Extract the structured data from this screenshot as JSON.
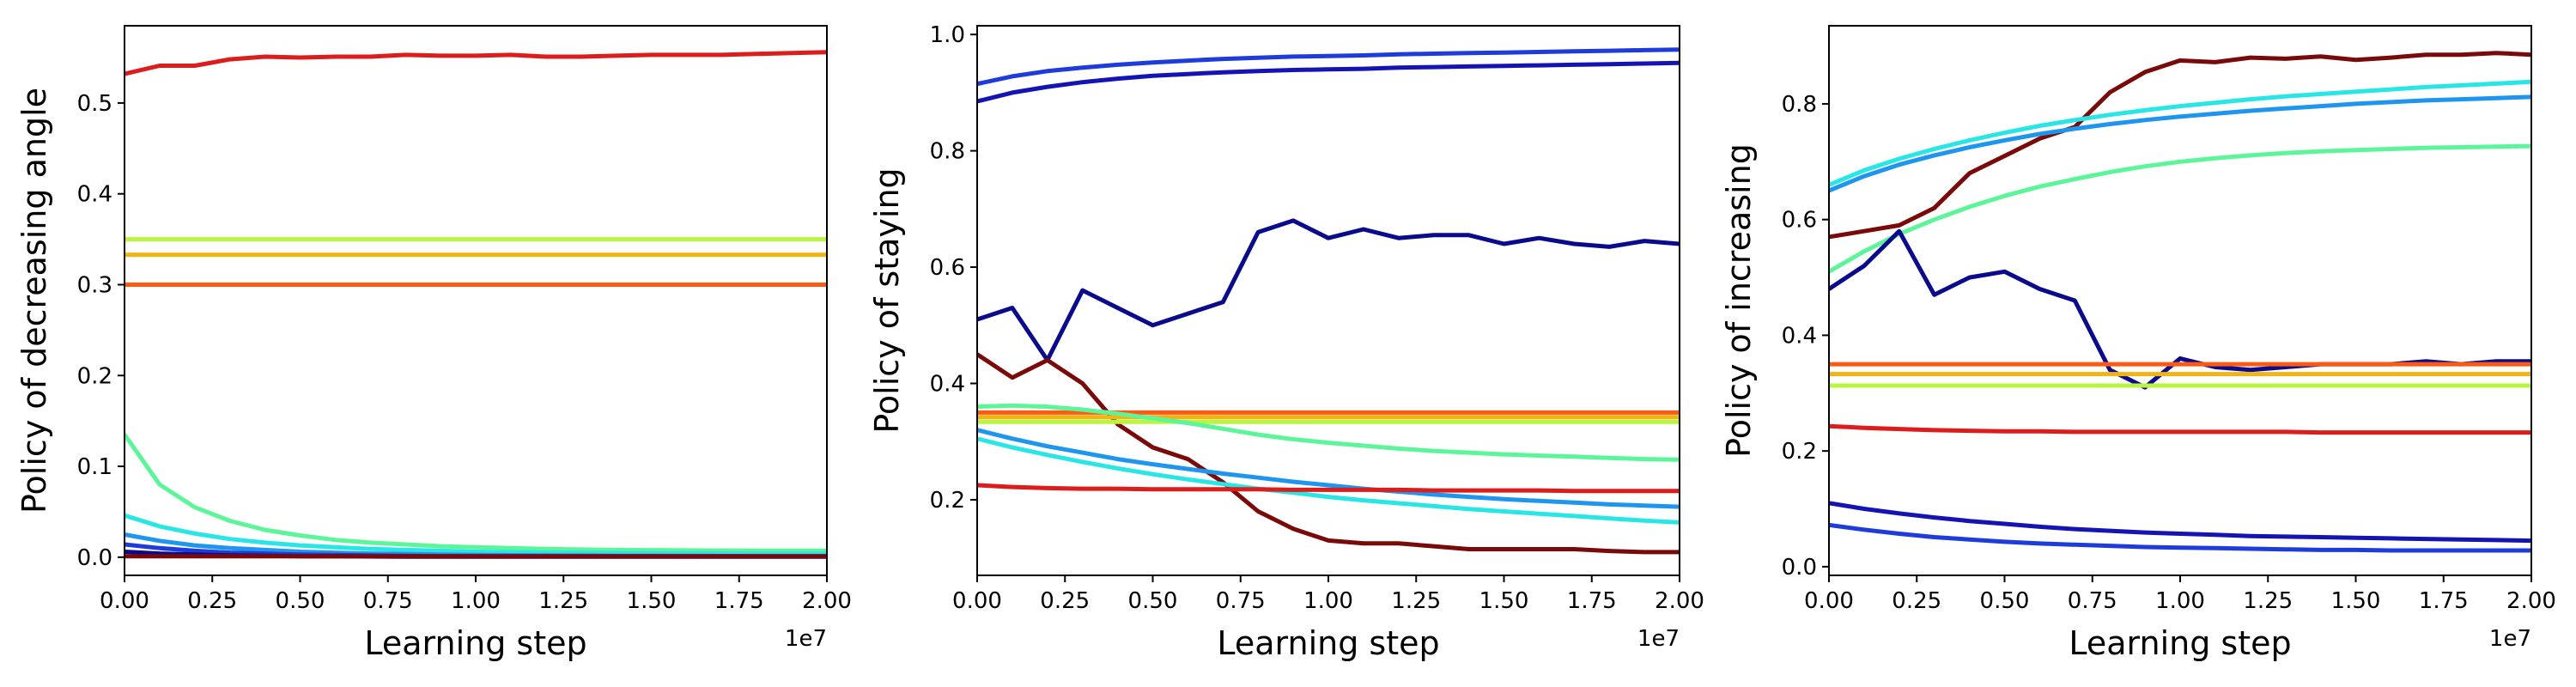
{
  "chart_data": [
    {
      "type": "line",
      "title": "",
      "xlabel": "Learning step",
      "ylabel": "Policy of decreasing angle",
      "x_offset_label": "1e7",
      "xlim": [
        0,
        2.0
      ],
      "ylim": [
        -0.02,
        0.585
      ],
      "xticks": [
        "0.00",
        "0.25",
        "0.50",
        "0.75",
        "1.00",
        "1.25",
        "1.50",
        "1.75",
        "2.00"
      ],
      "yticks": [
        "0.0",
        "0.1",
        "0.2",
        "0.3",
        "0.4",
        "0.5"
      ],
      "x": [
        0,
        0.1,
        0.2,
        0.3,
        0.4,
        0.5,
        0.6,
        0.7,
        0.8,
        0.9,
        1.0,
        1.1,
        1.2,
        1.3,
        1.4,
        1.5,
        1.6,
        1.7,
        1.8,
        1.9,
        2.0
      ],
      "series": [
        {
          "color": "#dd1c1c",
          "values": [
            0.532,
            0.541,
            0.541,
            0.548,
            0.551,
            0.55,
            0.551,
            0.551,
            0.553,
            0.552,
            0.552,
            0.553,
            0.551,
            0.551,
            0.552,
            0.553,
            0.553,
            0.553,
            0.554,
            0.555,
            0.556
          ]
        },
        {
          "color": "#b9f53e",
          "values": [
            0.35,
            0.35,
            0.35,
            0.35,
            0.35,
            0.35,
            0.35,
            0.35,
            0.35,
            0.35,
            0.35,
            0.35,
            0.35,
            0.35,
            0.35,
            0.35,
            0.35,
            0.35,
            0.35,
            0.35,
            0.35
          ]
        },
        {
          "color": "#f0b414",
          "values": [
            0.333,
            0.333,
            0.333,
            0.333,
            0.333,
            0.333,
            0.333,
            0.333,
            0.333,
            0.333,
            0.333,
            0.333,
            0.333,
            0.333,
            0.333,
            0.333,
            0.333,
            0.333,
            0.333,
            0.333,
            0.333
          ]
        },
        {
          "color": "#ff5a14",
          "values": [
            0.3,
            0.3,
            0.3,
            0.3,
            0.3,
            0.3,
            0.3,
            0.3,
            0.3,
            0.3,
            0.3,
            0.3,
            0.3,
            0.3,
            0.3,
            0.3,
            0.3,
            0.3,
            0.3,
            0.3,
            0.3
          ]
        },
        {
          "color": "#5cf59a",
          "values": [
            0.135,
            0.08,
            0.055,
            0.04,
            0.03,
            0.024,
            0.019,
            0.016,
            0.014,
            0.012,
            0.011,
            0.01,
            0.009,
            0.0085,
            0.008,
            0.0078,
            0.0075,
            0.0073,
            0.0071,
            0.007,
            0.007
          ]
        },
        {
          "color": "#28e6e6",
          "values": [
            0.046,
            0.034,
            0.026,
            0.02,
            0.016,
            0.013,
            0.011,
            0.009,
            0.008,
            0.007,
            0.006,
            0.0055,
            0.005,
            0.0047,
            0.0045,
            0.0043,
            0.0042,
            0.0041,
            0.004,
            0.004,
            0.004
          ]
        },
        {
          "color": "#1e96f0",
          "values": [
            0.025,
            0.018,
            0.013,
            0.01,
            0.008,
            0.006,
            0.005,
            0.004,
            0.0035,
            0.003,
            0.0025,
            0.0022,
            0.002,
            0.0018,
            0.0016,
            0.0015,
            0.0014,
            0.0013,
            0.0012,
            0.0012,
            0.0012
          ]
        },
        {
          "color": "#1e3cdc",
          "values": [
            0.014,
            0.01,
            0.007,
            0.005,
            0.004,
            0.003,
            0.0025,
            0.002,
            0.0015,
            0.0012,
            0.001,
            0.001,
            0.001,
            0.001,
            0.001,
            0.001,
            0.001,
            0.001,
            0.001,
            0.001,
            0.001
          ]
        },
        {
          "color": "#0a0a8c",
          "values": [
            0.006,
            0.004,
            0.003,
            0.002,
            0.0015,
            0.001,
            0.001,
            0.0008,
            0.0006,
            0.0005,
            0.0005,
            0.0005,
            0.0005,
            0.0005,
            0.0005,
            0.0005,
            0.0005,
            0.0005,
            0.0005,
            0.0005,
            0.0005
          ]
        },
        {
          "color": "#7a0a0a",
          "values": [
            0.001,
            0.001,
            0.001,
            0.001,
            0.001,
            0.001,
            0.001,
            0.001,
            0.001,
            0.001,
            0.001,
            0.001,
            0.001,
            0.001,
            0.001,
            0.001,
            0.001,
            0.001,
            0.001,
            0.001,
            0.001
          ]
        }
      ]
    },
    {
      "type": "line",
      "title": "",
      "xlabel": "Learning step",
      "ylabel": "Policy of staying",
      "x_offset_label": "1e7",
      "xlim": [
        0,
        2.0
      ],
      "ylim": [
        0.07,
        1.015
      ],
      "xticks": [
        "0.00",
        "0.25",
        "0.50",
        "0.75",
        "1.00",
        "1.25",
        "1.50",
        "1.75",
        "2.00"
      ],
      "yticks": [
        "0.2",
        "0.4",
        "0.6",
        "0.8",
        "1.0"
      ],
      "x": [
        0,
        0.1,
        0.2,
        0.3,
        0.4,
        0.5,
        0.6,
        0.7,
        0.8,
        0.9,
        1.0,
        1.1,
        1.2,
        1.3,
        1.4,
        1.5,
        1.6,
        1.7,
        1.8,
        1.9,
        2.0
      ],
      "series": [
        {
          "color": "#1e3cdc",
          "values": [
            0.915,
            0.928,
            0.937,
            0.943,
            0.948,
            0.952,
            0.955,
            0.958,
            0.96,
            0.962,
            0.963,
            0.964,
            0.966,
            0.967,
            0.968,
            0.969,
            0.97,
            0.971,
            0.972,
            0.973,
            0.974
          ]
        },
        {
          "color": "#1414b4",
          "values": [
            0.885,
            0.9,
            0.91,
            0.918,
            0.924,
            0.929,
            0.932,
            0.935,
            0.937,
            0.939,
            0.94,
            0.941,
            0.943,
            0.944,
            0.945,
            0.946,
            0.947,
            0.948,
            0.949,
            0.95,
            0.951
          ]
        },
        {
          "color": "#0a0a8c",
          "values": [
            0.51,
            0.53,
            0.44,
            0.56,
            0.53,
            0.5,
            0.52,
            0.54,
            0.66,
            0.68,
            0.65,
            0.665,
            0.65,
            0.655,
            0.655,
            0.64,
            0.65,
            0.64,
            0.635,
            0.645,
            0.64
          ]
        },
        {
          "color": "#7a0a0a",
          "values": [
            0.45,
            0.41,
            0.44,
            0.4,
            0.33,
            0.29,
            0.27,
            0.23,
            0.18,
            0.15,
            0.13,
            0.125,
            0.125,
            0.12,
            0.115,
            0.115,
            0.115,
            0.115,
            0.112,
            0.11,
            0.11
          ]
        },
        {
          "color": "#ff5a14",
          "values": [
            0.35,
            0.35,
            0.35,
            0.35,
            0.35,
            0.35,
            0.35,
            0.35,
            0.35,
            0.35,
            0.35,
            0.35,
            0.35,
            0.35,
            0.35,
            0.35,
            0.35,
            0.35,
            0.35,
            0.35,
            0.35
          ]
        },
        {
          "color": "#f0b414",
          "values": [
            0.342,
            0.342,
            0.342,
            0.342,
            0.342,
            0.342,
            0.342,
            0.342,
            0.342,
            0.342,
            0.342,
            0.342,
            0.342,
            0.342,
            0.342,
            0.342,
            0.342,
            0.342,
            0.342,
            0.342,
            0.342
          ]
        },
        {
          "color": "#b9f53e",
          "values": [
            0.334,
            0.334,
            0.334,
            0.334,
            0.334,
            0.334,
            0.334,
            0.334,
            0.334,
            0.334,
            0.334,
            0.334,
            0.334,
            0.334,
            0.334,
            0.334,
            0.334,
            0.334,
            0.334,
            0.334,
            0.334
          ]
        },
        {
          "color": "#5cf59a",
          "values": [
            0.36,
            0.362,
            0.36,
            0.355,
            0.348,
            0.34,
            0.332,
            0.322,
            0.312,
            0.304,
            0.298,
            0.293,
            0.288,
            0.284,
            0.281,
            0.278,
            0.276,
            0.274,
            0.272,
            0.27,
            0.269
          ]
        },
        {
          "color": "#1e96f0",
          "values": [
            0.32,
            0.305,
            0.292,
            0.281,
            0.27,
            0.261,
            0.253,
            0.245,
            0.238,
            0.231,
            0.225,
            0.219,
            0.214,
            0.209,
            0.205,
            0.201,
            0.198,
            0.195,
            0.192,
            0.19,
            0.188
          ]
        },
        {
          "color": "#28e6e6",
          "values": [
            0.305,
            0.29,
            0.277,
            0.265,
            0.254,
            0.244,
            0.235,
            0.227,
            0.219,
            0.212,
            0.205,
            0.199,
            0.194,
            0.189,
            0.184,
            0.18,
            0.176,
            0.172,
            0.168,
            0.164,
            0.161
          ]
        },
        {
          "color": "#dd1c1c",
          "values": [
            0.225,
            0.222,
            0.22,
            0.219,
            0.219,
            0.218,
            0.218,
            0.218,
            0.218,
            0.217,
            0.217,
            0.217,
            0.217,
            0.216,
            0.216,
            0.216,
            0.216,
            0.215,
            0.215,
            0.215,
            0.215
          ]
        }
      ]
    },
    {
      "type": "line",
      "title": "",
      "xlabel": "Learning step",
      "ylabel": "Policy of increasing",
      "x_offset_label": "1e7",
      "xlim": [
        0,
        2.0
      ],
      "ylim": [
        -0.015,
        0.935
      ],
      "xticks": [
        "0.00",
        "0.25",
        "0.50",
        "0.75",
        "1.00",
        "1.25",
        "1.50",
        "1.75",
        "2.00"
      ],
      "yticks": [
        "0.0",
        "0.2",
        "0.4",
        "0.6",
        "0.8"
      ],
      "x": [
        0,
        0.1,
        0.2,
        0.3,
        0.4,
        0.5,
        0.6,
        0.7,
        0.8,
        0.9,
        1.0,
        1.1,
        1.2,
        1.3,
        1.4,
        1.5,
        1.6,
        1.7,
        1.8,
        1.9,
        2.0
      ],
      "series": [
        {
          "color": "#7a0a0a",
          "values": [
            0.57,
            0.58,
            0.59,
            0.62,
            0.68,
            0.71,
            0.74,
            0.76,
            0.82,
            0.855,
            0.875,
            0.872,
            0.88,
            0.878,
            0.882,
            0.876,
            0.88,
            0.885,
            0.885,
            0.888,
            0.885
          ]
        },
        {
          "color": "#28e6e6",
          "values": [
            0.66,
            0.685,
            0.705,
            0.722,
            0.737,
            0.75,
            0.762,
            0.772,
            0.781,
            0.789,
            0.796,
            0.802,
            0.808,
            0.813,
            0.817,
            0.821,
            0.825,
            0.829,
            0.832,
            0.835,
            0.838
          ]
        },
        {
          "color": "#1e96f0",
          "values": [
            0.65,
            0.675,
            0.695,
            0.711,
            0.725,
            0.737,
            0.748,
            0.757,
            0.765,
            0.772,
            0.778,
            0.783,
            0.788,
            0.792,
            0.796,
            0.8,
            0.803,
            0.806,
            0.808,
            0.81,
            0.812
          ]
        },
        {
          "color": "#5cf59a",
          "values": [
            0.51,
            0.545,
            0.575,
            0.6,
            0.622,
            0.641,
            0.657,
            0.67,
            0.682,
            0.692,
            0.7,
            0.706,
            0.711,
            0.715,
            0.718,
            0.72,
            0.722,
            0.724,
            0.725,
            0.726,
            0.727
          ]
        },
        {
          "color": "#0a0a8c",
          "values": [
            0.48,
            0.52,
            0.58,
            0.47,
            0.5,
            0.51,
            0.48,
            0.46,
            0.34,
            0.31,
            0.36,
            0.345,
            0.34,
            0.345,
            0.35,
            0.35,
            0.35,
            0.355,
            0.35,
            0.355,
            0.355
          ]
        },
        {
          "color": "#ff5a14",
          "values": [
            0.35,
            0.35,
            0.35,
            0.35,
            0.35,
            0.35,
            0.35,
            0.35,
            0.35,
            0.35,
            0.35,
            0.35,
            0.35,
            0.35,
            0.35,
            0.35,
            0.35,
            0.35,
            0.35,
            0.35,
            0.35
          ]
        },
        {
          "color": "#f0b414",
          "values": [
            0.333,
            0.333,
            0.333,
            0.333,
            0.333,
            0.333,
            0.333,
            0.333,
            0.333,
            0.333,
            0.333,
            0.333,
            0.333,
            0.333,
            0.333,
            0.333,
            0.333,
            0.333,
            0.333,
            0.333,
            0.333
          ]
        },
        {
          "color": "#b9f53e",
          "values": [
            0.313,
            0.313,
            0.313,
            0.313,
            0.313,
            0.313,
            0.313,
            0.313,
            0.313,
            0.313,
            0.313,
            0.313,
            0.313,
            0.313,
            0.313,
            0.313,
            0.313,
            0.313,
            0.313,
            0.313,
            0.313
          ]
        },
        {
          "color": "#dd1c1c",
          "values": [
            0.243,
            0.24,
            0.238,
            0.236,
            0.235,
            0.234,
            0.234,
            0.233,
            0.233,
            0.233,
            0.233,
            0.233,
            0.233,
            0.233,
            0.232,
            0.232,
            0.232,
            0.232,
            0.232,
            0.232,
            0.232
          ]
        },
        {
          "color": "#1414b4",
          "values": [
            0.11,
            0.1,
            0.092,
            0.085,
            0.079,
            0.074,
            0.069,
            0.065,
            0.062,
            0.059,
            0.057,
            0.055,
            0.053,
            0.052,
            0.051,
            0.05,
            0.049,
            0.048,
            0.047,
            0.046,
            0.045
          ]
        },
        {
          "color": "#1e3cdc",
          "values": [
            0.072,
            0.064,
            0.057,
            0.051,
            0.047,
            0.043,
            0.04,
            0.038,
            0.036,
            0.034,
            0.033,
            0.032,
            0.031,
            0.03,
            0.029,
            0.029,
            0.028,
            0.028,
            0.028,
            0.028,
            0.028
          ]
        }
      ]
    }
  ]
}
